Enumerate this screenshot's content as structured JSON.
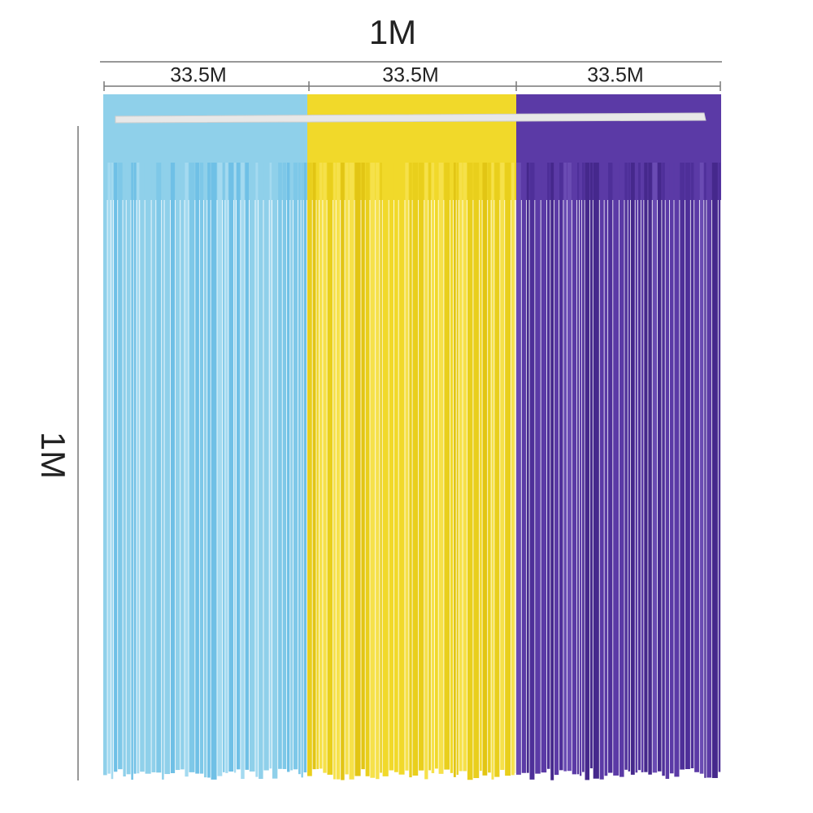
{
  "dimensions": {
    "width_label": "1M",
    "height_label": "1M",
    "segments": [
      {
        "label": "33.5M"
      },
      {
        "label": "33.5M"
      },
      {
        "label": "33.5M"
      }
    ]
  }
}
